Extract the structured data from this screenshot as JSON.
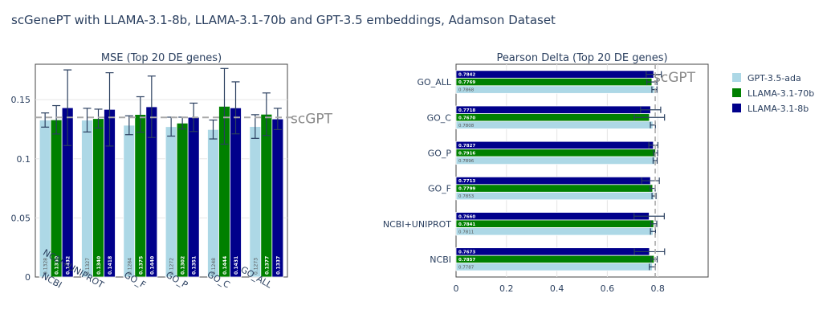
{
  "title": "scGenePT with LLAMA-3.1-8b, LLAMA-3.1-70b and GPT-3.5 embeddings, Adamson Dataset",
  "colors": {
    "GPT-3.5-ada": "#add8e6",
    "LLAMA-3.1-70b": "#008000",
    "LLAMA-3.1-8b": "#00008b",
    "reference": "#a9a9a9",
    "error": "#2a3f5f"
  },
  "legend": {
    "placement": "top-right",
    "entries": [
      "GPT-3.5-ada",
      "LLAMA-3.1-70b",
      "LLAMA-3.1-8b"
    ]
  },
  "chart_data": [
    {
      "type": "bar",
      "orientation": "vertical",
      "title": "MSE (Top 20 DE genes)",
      "categories": [
        "NCBI",
        "NCBI+UNIPROT",
        "GO_F",
        "GO_P",
        "GO_C",
        "GO_ALL"
      ],
      "ylim": [
        0,
        0.18
      ],
      "yticks": [
        0,
        0.05,
        0.1,
        0.15
      ],
      "ytick_labels": [
        "0",
        "0.05",
        "0.1",
        "0.15"
      ],
      "grid": true,
      "reference_line": {
        "value": 0.135,
        "label": "scGPT"
      },
      "series": [
        {
          "name": "GPT-3.5-ada",
          "values": [
            0.1328,
            0.1327,
            0.1284,
            0.1272,
            0.1248,
            0.1273
          ],
          "errors": [
            0.006,
            0.01,
            0.008,
            0.008,
            0.008,
            0.01
          ],
          "labels": [
            "0.1328",
            "0.1327",
            "0.1284",
            "0.1272",
            "0.1248",
            "0.1273"
          ]
        },
        {
          "name": "LLAMA-3.1-70b",
          "values": [
            0.133,
            0.134,
            0.1375,
            0.1302,
            0.1444,
            0.1377
          ],
          "errors": [
            0.012,
            0.008,
            0.015,
            0.005,
            0.032,
            0.018
          ],
          "labels": [
            "0.1330",
            "0.1340",
            "0.1375",
            "0.1302",
            "0.1444",
            "0.1377"
          ]
        },
        {
          "name": "LLAMA-3.1-8b",
          "values": [
            0.1432,
            0.1418,
            0.144,
            0.1351,
            0.1431,
            0.1337
          ],
          "errors": [
            0.032,
            0.031,
            0.026,
            0.012,
            0.022,
            0.009
          ],
          "labels": [
            "0.1432",
            "0.1418",
            "0.1440",
            "0.1351",
            "0.1431",
            "0.1337"
          ]
        }
      ]
    },
    {
      "type": "bar",
      "orientation": "horizontal",
      "title": "Pearson Delta (Top 20 DE genes)",
      "categories": [
        "NCBI",
        "NCBI+UNIPROT",
        "GO_F",
        "GO_P",
        "GO_C",
        "GO_ALL"
      ],
      "xlim": [
        0,
        1.0
      ],
      "xticks": [
        0,
        0.2,
        0.4,
        0.6,
        0.8
      ],
      "xtick_labels": [
        "0",
        "0.2",
        "0.4",
        "0.6",
        "0.8"
      ],
      "grid": true,
      "reference_line": {
        "value": 0.79,
        "label": "scGPT"
      },
      "series": [
        {
          "name": "GPT-3.5-ada",
          "values": [
            0.7787,
            0.7811,
            0.7853,
            0.7896,
            0.7808,
            0.7868
          ],
          "errors": [
            0.012,
            0.01,
            0.008,
            0.008,
            0.01,
            0.01
          ],
          "labels": [
            "0.7787",
            "0.7811",
            "0.7853",
            "0.7896",
            "0.7808",
            "0.7868"
          ]
        },
        {
          "name": "LLAMA-3.1-70b",
          "values": [
            0.7857,
            0.7841,
            0.7799,
            0.7916,
            0.767,
            0.7769
          ],
          "errors": [
            0.012,
            0.012,
            0.01,
            0.008,
            0.06,
            0.02
          ],
          "labels": [
            "0.7857",
            "0.7841",
            "0.7799",
            "0.7916",
            "0.7670",
            "0.7769"
          ]
        },
        {
          "name": "LLAMA-3.1-8b",
          "values": [
            0.7673,
            0.766,
            0.7713,
            0.7827,
            0.7718,
            0.7842
          ],
          "errors": [
            0.06,
            0.06,
            0.035,
            0.018,
            0.04,
            0.03
          ],
          "labels": [
            "0.7673",
            "0.7660",
            "0.7713",
            "0.7827",
            "0.7718",
            "0.7842"
          ]
        }
      ]
    }
  ]
}
